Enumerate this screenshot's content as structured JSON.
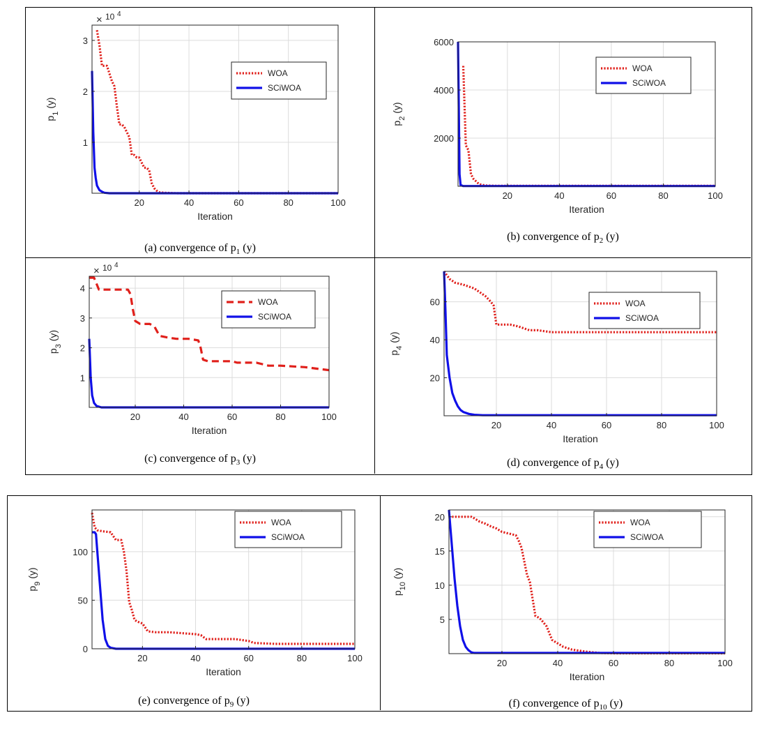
{
  "colors": {
    "woa": "#e0201b",
    "sciwoa": "#1010e8",
    "grid": "#dcdcdc",
    "axis": "#262626"
  },
  "chart_data": [
    {
      "type": "line",
      "caption": {
        "pre": "(a) convergence of p",
        "sub": "1",
        "post": " (y)"
      },
      "ylabel": {
        "main": "p",
        "sub": "1",
        "suffix": " (y)"
      },
      "xlabel": "Iteration",
      "exponent_label": "10",
      "exponent_power": "4",
      "xlim": [
        1,
        100
      ],
      "ylim": [
        0,
        3.3
      ],
      "xticks": [
        20,
        40,
        60,
        80,
        100
      ],
      "xtick_labels": [
        "20",
        "40",
        "60",
        "80",
        "100"
      ],
      "yticks": [
        1,
        2,
        3
      ],
      "ytick_labels": [
        "1",
        "2",
        "3"
      ],
      "grid": true,
      "legend": "top-right",
      "series": [
        {
          "name": "WOA",
          "style": "dotted",
          "x": [
            3,
            4,
            5,
            6,
            7,
            8,
            9,
            10,
            11,
            12,
            13,
            14,
            15,
            16,
            17,
            18,
            19,
            20,
            21,
            22,
            23,
            24,
            25,
            26,
            27,
            28,
            30,
            35,
            100
          ],
          "y": [
            3.2,
            2.9,
            2.5,
            2.5,
            2.5,
            2.35,
            2.2,
            2.1,
            1.7,
            1.35,
            1.35,
            1.3,
            1.2,
            1.1,
            0.75,
            0.75,
            0.7,
            0.7,
            0.6,
            0.5,
            0.5,
            0.45,
            0.2,
            0.1,
            0.05,
            0.02,
            0.01,
            0.0,
            0.0
          ]
        },
        {
          "name": "SCiWOA",
          "style": "solid",
          "x": [
            1,
            1.5,
            2,
            2.5,
            3,
            4,
            5,
            6,
            8,
            100
          ],
          "y": [
            2.4,
            1.2,
            0.5,
            0.3,
            0.15,
            0.06,
            0.03,
            0.01,
            0.0,
            0.0
          ]
        }
      ]
    },
    {
      "type": "line",
      "caption": {
        "pre": "(b) convergence of p",
        "sub": "2",
        "post": " (y)"
      },
      "ylabel": {
        "main": "p",
        "sub": "2",
        "suffix": " (y)"
      },
      "xlabel": "Iteration",
      "xlim": [
        1,
        100
      ],
      "ylim": [
        0,
        6000
      ],
      "xticks": [
        20,
        40,
        60,
        80,
        100
      ],
      "xtick_labels": [
        "20",
        "40",
        "60",
        "80",
        "100"
      ],
      "yticks": [
        2000,
        4000,
        6000
      ],
      "ytick_labels": [
        "2000",
        "4000",
        "6000"
      ],
      "grid": true,
      "legend": "top-right",
      "series": [
        {
          "name": "WOA",
          "style": "dotted",
          "x": [
            3,
            4,
            5,
            6,
            7,
            8,
            9,
            10,
            12,
            15,
            100
          ],
          "y": [
            5000,
            1700,
            1500,
            500,
            300,
            200,
            100,
            60,
            30,
            20,
            20
          ]
        },
        {
          "name": "SCiWOA",
          "style": "solid",
          "x": [
            1,
            1.6,
            2,
            3,
            100
          ],
          "y": [
            6000,
            500,
            50,
            10,
            10
          ]
        }
      ]
    },
    {
      "type": "line",
      "caption": {
        "pre": "(c) convergence of p",
        "sub": "3",
        "post": " (y)"
      },
      "ylabel": {
        "main": "p",
        "sub": "3",
        "suffix": " (y)"
      },
      "xlabel": "Iteration",
      "exponent_label": "10",
      "exponent_power": "4",
      "xlim": [
        1,
        100
      ],
      "ylim": [
        0,
        4.4
      ],
      "xticks": [
        20,
        40,
        60,
        80,
        100
      ],
      "xtick_labels": [
        "20",
        "40",
        "60",
        "80",
        "100"
      ],
      "yticks": [
        1,
        2,
        3,
        4
      ],
      "ytick_labels": [
        "1",
        "2",
        "3",
        "4"
      ],
      "grid": true,
      "legend": "top-right",
      "series": [
        {
          "name": "WOA",
          "style": "dashed",
          "x": [
            1,
            3,
            5,
            8,
            12,
            17,
            18,
            19,
            20,
            22,
            24,
            26,
            28,
            30,
            33,
            37,
            42,
            46,
            47,
            48,
            50,
            55,
            60,
            62,
            65,
            70,
            75,
            80,
            90,
            95,
            100
          ],
          "y": [
            4.35,
            4.35,
            3.95,
            3.95,
            3.95,
            3.95,
            3.8,
            3.3,
            2.9,
            2.8,
            2.8,
            2.8,
            2.7,
            2.4,
            2.35,
            2.3,
            2.3,
            2.25,
            2.0,
            1.6,
            1.55,
            1.55,
            1.55,
            1.5,
            1.5,
            1.5,
            1.4,
            1.4,
            1.35,
            1.3,
            1.25
          ]
        },
        {
          "name": "SCiWOA",
          "style": "solid",
          "x": [
            1,
            1.6,
            2.2,
            3,
            4,
            6,
            100
          ],
          "y": [
            2.3,
            1.0,
            0.4,
            0.15,
            0.05,
            0.0,
            0.0
          ]
        }
      ]
    },
    {
      "type": "line",
      "caption": {
        "pre": "(d) convergence of p",
        "sub": "4",
        "post": " (y)"
      },
      "ylabel": {
        "main": "p",
        "sub": "4",
        "suffix": " (y)"
      },
      "xlabel": "Iteration",
      "xlim": [
        1,
        100
      ],
      "ylim": [
        0,
        76
      ],
      "xticks": [
        20,
        40,
        60,
        80,
        100
      ],
      "xtick_labels": [
        "20",
        "40",
        "60",
        "80",
        "100"
      ],
      "yticks": [
        20,
        40,
        60
      ],
      "ytick_labels": [
        "20",
        "40",
        "60"
      ],
      "grid": true,
      "legend": "top-right",
      "series": [
        {
          "name": "WOA",
          "style": "dotted",
          "x": [
            1,
            3,
            5,
            8,
            10,
            12,
            14,
            16,
            18,
            19,
            20,
            22,
            25,
            28,
            30,
            32,
            35,
            40,
            45,
            50,
            100
          ],
          "y": [
            76,
            72,
            70,
            69,
            68,
            67,
            65,
            63,
            60,
            58,
            48,
            48,
            48,
            47,
            46,
            45,
            45,
            44,
            44,
            44,
            44
          ]
        },
        {
          "name": "SCiWOA",
          "style": "solid",
          "x": [
            1,
            1.5,
            2,
            3,
            4,
            5,
            6,
            7,
            8,
            10,
            12,
            15,
            100
          ],
          "y": [
            76,
            55,
            32,
            20,
            12,
            8,
            5,
            3,
            2,
            1,
            0.5,
            0.3,
            0.3
          ]
        }
      ]
    },
    {
      "type": "line",
      "caption": {
        "pre": "(e) convergence of p",
        "sub": "9",
        "post": " (y)"
      },
      "ylabel": {
        "main": "p",
        "sub": "9",
        "suffix": " (y)"
      },
      "xlabel": "Iteration",
      "xlim": [
        1,
        100
      ],
      "ylim": [
        0,
        143
      ],
      "xticks": [
        20,
        40,
        60,
        80,
        100
      ],
      "xtick_labels": [
        "20",
        "40",
        "60",
        "80",
        "100"
      ],
      "yticks": [
        0,
        50,
        100
      ],
      "ytick_labels": [
        "0",
        "50",
        "100"
      ],
      "grid": true,
      "legend": "top-right",
      "series": [
        {
          "name": "WOA",
          "style": "dotted",
          "x": [
            1,
            2,
            3,
            5,
            8,
            10,
            12,
            13,
            14,
            15,
            16,
            17,
            18,
            20,
            22,
            25,
            30,
            35,
            40,
            42,
            44,
            50,
            55,
            60,
            62,
            70,
            80,
            100
          ],
          "y": [
            140,
            125,
            122,
            121,
            120,
            112,
            112,
            100,
            80,
            48,
            40,
            30,
            28,
            26,
            18,
            17,
            17,
            16,
            15,
            14,
            10,
            10,
            10,
            8,
            6,
            5,
            5,
            5
          ]
        },
        {
          "name": "SCiWOA",
          "style": "solid",
          "x": [
            1,
            2,
            2.5,
            3,
            4,
            5,
            6,
            7,
            8,
            10,
            100
          ],
          "y": [
            120,
            120,
            118,
            100,
            65,
            30,
            10,
            3,
            1,
            0,
            0
          ]
        }
      ]
    },
    {
      "type": "line",
      "caption": {
        "pre": "(f) convergence of p",
        "sub": "10",
        "post": " (y)"
      },
      "ylabel": {
        "main": "p",
        "sub": "10",
        "suffix": " (y)"
      },
      "xlabel": "Iteration",
      "xlim": [
        1,
        100
      ],
      "ylim": [
        0,
        21
      ],
      "xticks": [
        20,
        40,
        60,
        80,
        100
      ],
      "xtick_labels": [
        "20",
        "40",
        "60",
        "80",
        "100"
      ],
      "yticks": [
        5,
        10,
        15,
        20
      ],
      "ytick_labels": [
        "5",
        "10",
        "15",
        "20"
      ],
      "grid": true,
      "legend": "top-right",
      "series": [
        {
          "name": "WOA",
          "style": "dotted",
          "x": [
            1,
            5,
            9,
            10,
            12,
            14,
            16,
            18,
            20,
            22,
            25,
            26,
            27,
            28,
            29,
            30,
            31,
            32,
            33,
            34,
            35,
            36,
            37,
            38,
            40,
            42,
            45,
            50,
            55,
            60,
            100
          ],
          "y": [
            20,
            20,
            20,
            19.8,
            19.3,
            19,
            18.6,
            18.3,
            17.8,
            17.6,
            17.3,
            16.5,
            15.5,
            13.5,
            11.5,
            10.5,
            8,
            5.5,
            5.3,
            5,
            4.5,
            4,
            3,
            2,
            1.5,
            1,
            0.6,
            0.3,
            0.1,
            0.05,
            0.05
          ]
        },
        {
          "name": "SCiWOA",
          "style": "solid",
          "x": [
            1,
            2,
            3,
            4,
            5,
            6,
            7,
            8,
            9,
            10,
            100
          ],
          "y": [
            21,
            16,
            11,
            7,
            4,
            2,
            1,
            0.5,
            0.2,
            0.1,
            0.1
          ]
        }
      ]
    }
  ]
}
